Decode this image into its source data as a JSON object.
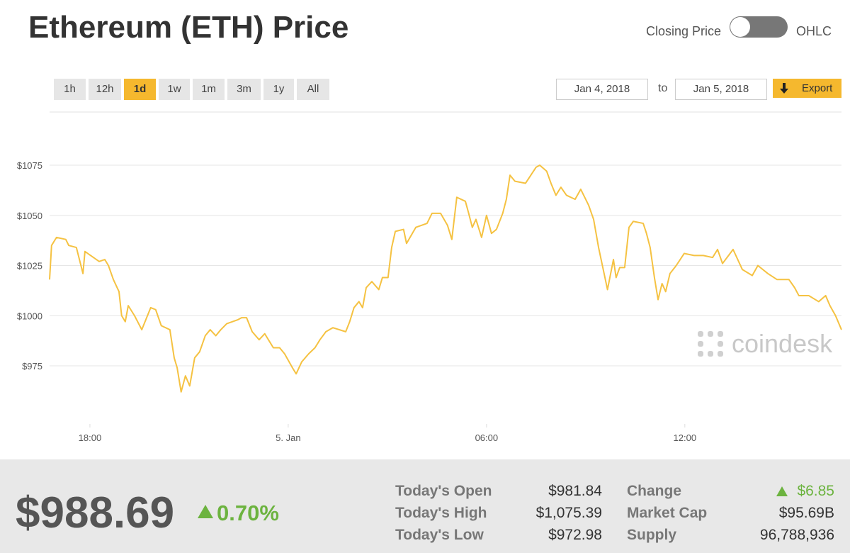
{
  "header": {
    "title": "Ethereum (ETH) Price",
    "toggle_left": "Closing Price",
    "toggle_right": "OHLC"
  },
  "ranges": [
    "1h",
    "12h",
    "1d",
    "1w",
    "1m",
    "3m",
    "1y",
    "All"
  ],
  "active_range": 2,
  "dates": {
    "from": "Jan 4, 2018",
    "separator": "to",
    "to": "Jan 5, 2018",
    "export": "Export"
  },
  "watermark": "coindesk",
  "chart_data": {
    "type": "line",
    "color": "#f5c242",
    "grid": true,
    "xlim": [
      16.78,
      40.74
    ],
    "xticks": [
      {
        "value": 18,
        "label": "18:00"
      },
      {
        "value": 24,
        "label": "5. Jan"
      },
      {
        "value": 30,
        "label": "06:00"
      },
      {
        "value": 36,
        "label": "12:00"
      }
    ],
    "ylim": [
      950,
      1100
    ],
    "yticks": [
      {
        "value": 975,
        "label": "$975"
      },
      {
        "value": 1000,
        "label": "$1000"
      },
      {
        "value": 1025,
        "label": "$1025"
      },
      {
        "value": 1050,
        "label": "$1050"
      },
      {
        "value": 1075,
        "label": "$1075"
      }
    ],
    "x": [
      16.78,
      16.84,
      16.99,
      17.27,
      17.36,
      17.59,
      17.79,
      17.85,
      18.02,
      18.28,
      18.45,
      18.56,
      18.71,
      18.88,
      18.96,
      19.07,
      19.16,
      19.35,
      19.57,
      19.84,
      19.99,
      20.16,
      20.42,
      20.55,
      20.64,
      20.76,
      20.89,
      21.02,
      21.17,
      21.32,
      21.49,
      21.64,
      21.81,
      21.96,
      22.14,
      22.48,
      22.59,
      22.74,
      22.91,
      23.12,
      23.29,
      23.55,
      23.74,
      23.89,
      24.13,
      24.24,
      24.41,
      24.62,
      24.81,
      24.96,
      25.14,
      25.35,
      25.74,
      25.86,
      25.99,
      26.14,
      26.25,
      26.36,
      26.53,
      26.74,
      26.85,
      27.02,
      27.13,
      27.24,
      27.49,
      27.58,
      27.86,
      28.2,
      28.35,
      28.61,
      28.82,
      28.95,
      29.1,
      29.36,
      29.46,
      29.57,
      29.68,
      29.85,
      30.0,
      30.15,
      30.3,
      30.49,
      30.6,
      30.71,
      30.86,
      31.18,
      31.5,
      31.61,
      31.82,
      31.95,
      32.1,
      32.25,
      32.42,
      32.68,
      32.85,
      33.09,
      33.24,
      33.39,
      33.66,
      33.84,
      33.92,
      34.03,
      34.18,
      34.31,
      34.44,
      34.74,
      34.84,
      34.95,
      35.08,
      35.19,
      35.31,
      35.42,
      35.55,
      35.74,
      35.98,
      36.28,
      36.56,
      36.84,
      36.99,
      37.14,
      37.46,
      37.74,
      38.04,
      38.21,
      38.51,
      38.79,
      39.15,
      39.32,
      39.45,
      39.75,
      40.05,
      40.26,
      40.39,
      40.56,
      40.74
    ],
    "values": [
      1018,
      1035,
      1039,
      1038,
      1035,
      1034,
      1021,
      1032,
      1030,
      1027,
      1028,
      1025,
      1018,
      1012,
      1000,
      997,
      1005,
      1000,
      993,
      1004,
      1003,
      995,
      993,
      979,
      974,
      962,
      970,
      965,
      979,
      982,
      990,
      993,
      990,
      993,
      996,
      998,
      999,
      999,
      992,
      988,
      991,
      984,
      984,
      981,
      974,
      971,
      977,
      981,
      984,
      988,
      992,
      994,
      992,
      997,
      1004,
      1007,
      1004,
      1014,
      1017,
      1013,
      1019,
      1019,
      1034,
      1042,
      1043,
      1036,
      1044,
      1046,
      1051,
      1051,
      1045,
      1038,
      1059,
      1057,
      1051,
      1044,
      1048,
      1039,
      1050,
      1041,
      1043,
      1051,
      1058,
      1070,
      1067,
      1066,
      1074,
      1075,
      1072,
      1066,
      1060,
      1064,
      1060,
      1058,
      1063,
      1055,
      1048,
      1034,
      1013,
      1028,
      1019,
      1024,
      1024,
      1044,
      1047,
      1046,
      1041,
      1034,
      1019,
      1008,
      1016,
      1012,
      1021,
      1025,
      1031,
      1030,
      1030,
      1029,
      1033,
      1026,
      1033,
      1023,
      1020,
      1025,
      1021,
      1018,
      1018,
      1014,
      1010,
      1010,
      1007,
      1010,
      1005,
      1000,
      993
    ]
  },
  "summary": {
    "price": "$988.69",
    "change_pct": "0.70%"
  },
  "stats": [
    [
      "Today's Open",
      "$981.84",
      "Change",
      "$6.85"
    ],
    [
      "Today's High",
      "$1,075.39",
      "Market Cap",
      "$95.69B"
    ],
    [
      "Today's Low",
      "$972.98",
      "Supply",
      "96,788,936"
    ]
  ]
}
